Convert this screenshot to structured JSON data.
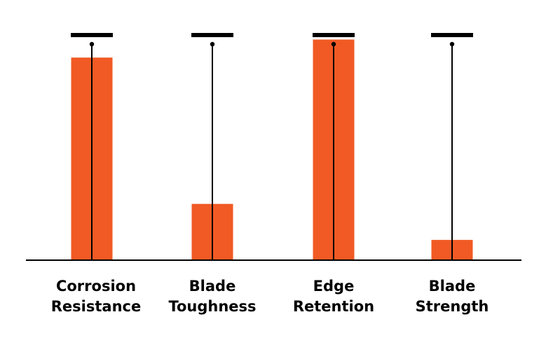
{
  "chart_data": {
    "type": "bar",
    "title": "",
    "xlabel": "",
    "ylabel": "",
    "ylim": [
      0,
      100
    ],
    "grid": false,
    "legend": "none",
    "categories": [
      [
        "Corrosion",
        "Resistance"
      ],
      [
        "Blade",
        "Toughness"
      ],
      [
        "Edge",
        "Retention"
      ],
      [
        "Blade",
        "Strength"
      ]
    ],
    "values": [
      90,
      25,
      98,
      9
    ],
    "max_values": [
      100,
      100,
      100,
      100
    ],
    "colors": {
      "bar": "#f15a24",
      "marker": "#000000",
      "axis": "#000000"
    }
  }
}
